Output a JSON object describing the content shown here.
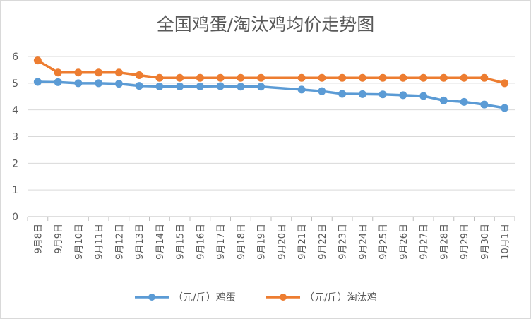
{
  "chart_data": {
    "type": "line",
    "title": "全国鸡蛋/淘汰鸡均价走势图",
    "xlabel": "",
    "ylabel": "",
    "ylim": [
      0,
      6
    ],
    "yticks": [
      0,
      1,
      2,
      3,
      4,
      5,
      6
    ],
    "grid": "horizontal",
    "legend_position": "bottom",
    "categories": [
      "9月8日",
      "9月9日",
      "9月10日",
      "9月11日",
      "9月12日",
      "9月13日",
      "9月14日",
      "9月15日",
      "9月16日",
      "9月17日",
      "9月18日",
      "9月19日",
      "9月20日",
      "9月21日",
      "9月22日",
      "9月23日",
      "9月24日",
      "9月25日",
      "9月26日",
      "9月27日",
      "9月28日",
      "9月29日",
      "9月30日",
      "10月1日"
    ],
    "series": [
      {
        "name": "（元/斤）鸡蛋",
        "color": "#5b9bd5",
        "values": [
          5.05,
          5.04,
          5.0,
          5.0,
          4.98,
          4.9,
          4.88,
          4.88,
          4.88,
          4.89,
          4.87,
          4.87,
          null,
          4.76,
          4.7,
          4.6,
          4.59,
          4.58,
          4.55,
          4.52,
          4.35,
          4.3,
          4.2,
          4.07
        ]
      },
      {
        "name": "（元/斤）淘汰鸡",
        "color": "#ed7d31",
        "values": [
          5.85,
          5.4,
          5.4,
          5.4,
          5.4,
          5.3,
          5.2,
          5.2,
          5.2,
          5.2,
          5.2,
          5.2,
          null,
          5.2,
          5.2,
          5.2,
          5.2,
          5.2,
          5.2,
          5.2,
          5.2,
          5.2,
          5.2,
          5.0
        ]
      }
    ]
  }
}
